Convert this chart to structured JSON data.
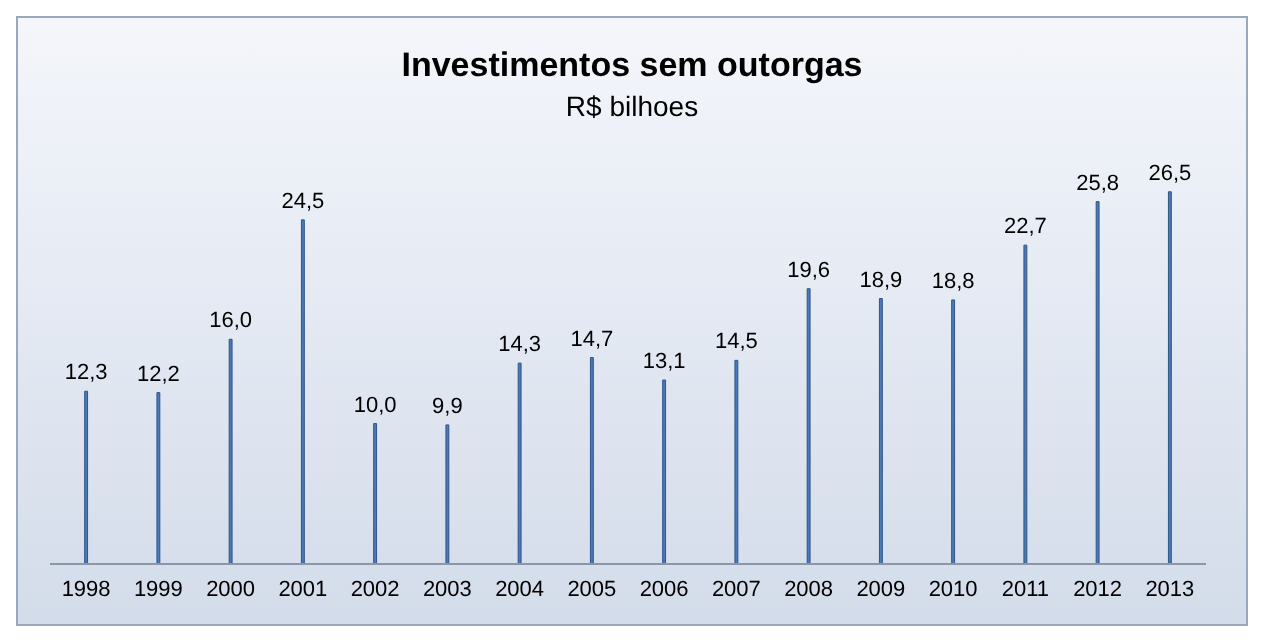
{
  "chart_data": {
    "type": "bar",
    "title": "Investimentos sem outorgas",
    "subtitle": "R$ bilhoes",
    "categories": [
      "1998",
      "1999",
      "2000",
      "2001",
      "2002",
      "2003",
      "2004",
      "2005",
      "2006",
      "2007",
      "2008",
      "2009",
      "2010",
      "2011",
      "2012",
      "2013"
    ],
    "values": [
      12.3,
      12.2,
      16.0,
      24.5,
      10.0,
      9.9,
      14.3,
      14.7,
      13.1,
      14.5,
      19.6,
      18.9,
      18.8,
      22.7,
      25.8,
      26.5
    ],
    "value_labels": [
      "12,3",
      "12,2",
      "16,0",
      "24,5",
      "10,0",
      "9,9",
      "14,3",
      "14,7",
      "13,1",
      "14,5",
      "19,6",
      "18,9",
      "18,8",
      "22,7",
      "25,8",
      "26,5"
    ],
    "color": "#4a7ab8",
    "grid": false,
    "legend": false
  }
}
